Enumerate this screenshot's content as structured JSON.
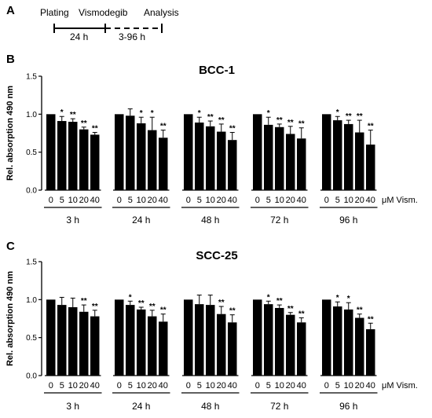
{
  "timeline": {
    "letter": "A",
    "labels": [
      "Plating",
      "Vismodegib",
      "Analysis"
    ],
    "interval_solid": "24 h",
    "interval_dashed": "3-96 h"
  },
  "chart_data": [
    {
      "type": "bar",
      "panel": "B",
      "title": "BCC-1",
      "ylabel": "Rel. absorption 490 nm",
      "ylim": [
        0,
        1.5
      ],
      "yticks": [
        "0.0",
        "0.5",
        "1.0",
        "1.5"
      ],
      "xunit": "μM Vism.",
      "categories": [
        "0",
        "5",
        "10",
        "20",
        "40"
      ],
      "groups": [
        {
          "name": "3 h",
          "values": [
            1.0,
            0.91,
            0.9,
            0.8,
            0.73
          ],
          "errors": [
            0,
            0.06,
            0.04,
            0.03,
            0.03
          ],
          "stars": [
            "",
            "*",
            "**",
            "**",
            "**"
          ]
        },
        {
          "name": "24 h",
          "values": [
            1.0,
            0.98,
            0.88,
            0.79,
            0.69
          ],
          "errors": [
            0,
            0.09,
            0.08,
            0.17,
            0.1
          ],
          "stars": [
            "",
            "",
            "*",
            "*",
            "**"
          ]
        },
        {
          "name": "48 h",
          "values": [
            1.0,
            0.89,
            0.84,
            0.77,
            0.66
          ],
          "errors": [
            0,
            0.07,
            0.07,
            0.1,
            0.1
          ],
          "stars": [
            "",
            "*",
            "**",
            "**",
            "**"
          ]
        },
        {
          "name": "72 h",
          "values": [
            1.0,
            0.86,
            0.83,
            0.74,
            0.68
          ],
          "errors": [
            0,
            0.1,
            0.04,
            0.1,
            0.14
          ],
          "stars": [
            "",
            "*",
            "**",
            "**",
            "**"
          ]
        },
        {
          "name": "96 h",
          "values": [
            1.0,
            0.92,
            0.87,
            0.76,
            0.6
          ],
          "errors": [
            0,
            0.05,
            0.05,
            0.16,
            0.19
          ],
          "stars": [
            "",
            "*",
            "**",
            "**",
            "**"
          ]
        }
      ]
    },
    {
      "type": "bar",
      "panel": "C",
      "title": "SCC-25",
      "ylabel": "Rel. absorption 490 nm",
      "ylim": [
        0,
        1.5
      ],
      "yticks": [
        "0.0",
        "0.5",
        "1.0",
        "1.5"
      ],
      "xunit": "μM Vism.",
      "categories": [
        "0",
        "5",
        "10",
        "20",
        "40"
      ],
      "groups": [
        {
          "name": "3 h",
          "values": [
            1.0,
            0.93,
            0.9,
            0.84,
            0.78
          ],
          "errors": [
            0,
            0.1,
            0.12,
            0.09,
            0.08
          ],
          "stars": [
            "",
            "",
            "",
            "**",
            "**"
          ]
        },
        {
          "name": "24 h",
          "values": [
            1.0,
            0.93,
            0.87,
            0.78,
            0.71
          ],
          "errors": [
            0,
            0.05,
            0.03,
            0.08,
            0.1
          ],
          "stars": [
            "",
            "*",
            "**",
            "**",
            "**"
          ]
        },
        {
          "name": "48 h",
          "values": [
            1.0,
            0.94,
            0.93,
            0.81,
            0.7
          ],
          "errors": [
            0,
            0.12,
            0.13,
            0.1,
            0.1
          ],
          "stars": [
            "",
            "",
            "",
            "**",
            "**"
          ]
        },
        {
          "name": "72 h",
          "values": [
            1.0,
            0.94,
            0.89,
            0.8,
            0.7
          ],
          "errors": [
            0,
            0.04,
            0.04,
            0.03,
            0.06
          ],
          "stars": [
            "",
            "*",
            "**",
            "**",
            "**"
          ]
        },
        {
          "name": "96 h",
          "values": [
            1.0,
            0.91,
            0.87,
            0.76,
            0.61
          ],
          "errors": [
            0,
            0.06,
            0.09,
            0.05,
            0.08
          ],
          "stars": [
            "",
            "*",
            "*",
            "**",
            "**"
          ]
        }
      ]
    }
  ]
}
